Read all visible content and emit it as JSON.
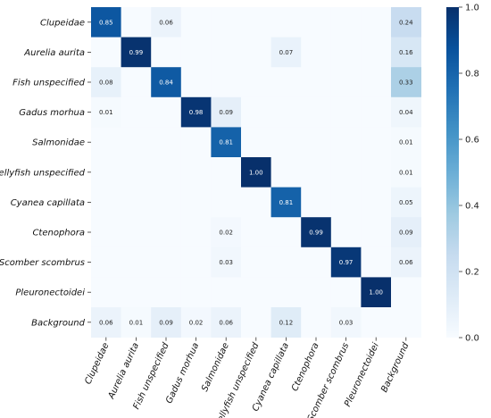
{
  "chart_data": {
    "type": "heatmap",
    "rows": [
      "Clupeidae",
      "Aurelia aurita",
      "Fish unspecified",
      "Gadus morhua",
      "Salmonidae",
      "Jellyfish unspecified",
      "Cyanea capillata",
      "Ctenophora",
      "Scomber scombrus",
      "Pleuronectoidei",
      "Background"
    ],
    "columns": [
      "Clupeidae",
      "Aurelia aurita",
      "Fish unspecified",
      "Gadus morhua",
      "Salmonidae",
      "Jellyfish unspecified",
      "Cyanea capillata",
      "Ctenophora",
      "Scomber scombrus",
      "Pleuronectoidei",
      "Background"
    ],
    "values": [
      [
        0.85,
        null,
        0.06,
        null,
        null,
        null,
        null,
        null,
        null,
        null,
        0.24
      ],
      [
        null,
        0.99,
        null,
        null,
        null,
        null,
        0.07,
        null,
        null,
        null,
        0.16
      ],
      [
        0.08,
        null,
        0.84,
        null,
        null,
        null,
        null,
        null,
        null,
        null,
        0.33
      ],
      [
        0.01,
        null,
        null,
        0.98,
        0.09,
        null,
        null,
        null,
        null,
        null,
        0.04
      ],
      [
        null,
        null,
        null,
        null,
        0.81,
        null,
        null,
        null,
        null,
        null,
        0.01
      ],
      [
        null,
        null,
        null,
        null,
        null,
        1.0,
        null,
        null,
        null,
        null,
        0.01
      ],
      [
        null,
        null,
        null,
        null,
        null,
        null,
        0.81,
        null,
        null,
        null,
        0.05
      ],
      [
        null,
        null,
        null,
        null,
        0.02,
        null,
        null,
        0.99,
        null,
        null,
        0.09
      ],
      [
        null,
        null,
        null,
        null,
        0.03,
        null,
        null,
        null,
        0.97,
        null,
        0.06
      ],
      [
        null,
        null,
        null,
        null,
        null,
        null,
        null,
        null,
        null,
        1.0,
        null
      ],
      [
        0.06,
        0.01,
        0.09,
        0.02,
        0.06,
        null,
        0.12,
        null,
        0.03,
        null,
        null
      ]
    ],
    "colorbar": {
      "range": [
        0.0,
        1.0
      ],
      "ticks": [
        "0.0",
        "0.2",
        "0.4",
        "0.6",
        "0.8",
        "1.0"
      ]
    },
    "colormap": {
      "low": "#f7fbff",
      "high": "#08306b"
    }
  }
}
